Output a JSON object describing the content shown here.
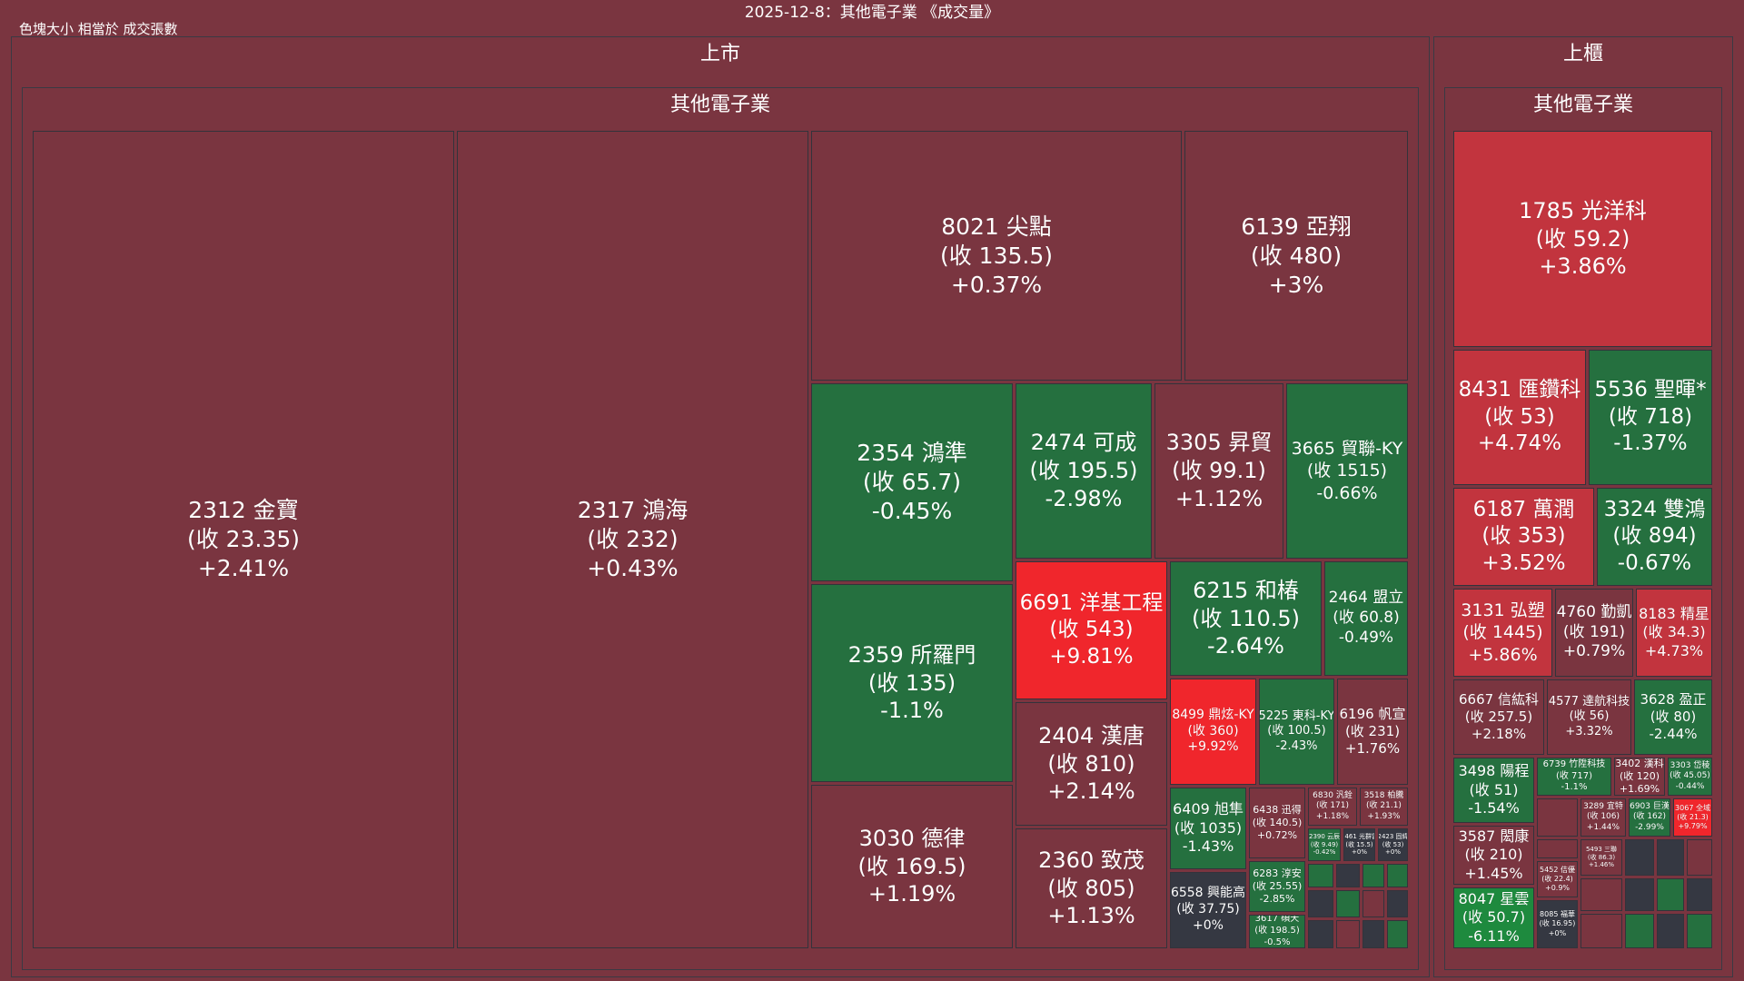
{
  "title": "2025-12-8：其他電子業 《成交量》",
  "subtitle": "色塊大小 相當於 成交張數",
  "colors": {
    "background": "#7a3540",
    "up": "#7a3540",
    "up_strong": "#c2343e",
    "limit_up": "#f0262c",
    "flat": "#353842",
    "down": "#25703f",
    "down_strong": "#1e8a3e"
  },
  "markets": [
    {
      "name": "上市",
      "industry": "其他電子業"
    },
    {
      "name": "上櫃",
      "industry": "其他電子業"
    }
  ],
  "chart_data": {
    "type": "treemap",
    "size_metric": "成交張數",
    "stocks": [
      {
        "market": "上市",
        "code": "2312",
        "name": "金寶",
        "close": "(收 23.35)",
        "change": "+2.41%",
        "change_pct": 2.41
      },
      {
        "market": "上市",
        "code": "2317",
        "name": "鴻海",
        "close": "(收 232)",
        "change": "+0.43%",
        "change_pct": 0.43
      },
      {
        "market": "上市",
        "code": "8021",
        "name": "尖點",
        "close": "(收 135.5)",
        "change": "+0.37%",
        "change_pct": 0.37
      },
      {
        "market": "上市",
        "code": "6139",
        "name": "亞翔",
        "close": "(收 480)",
        "change": "+3%",
        "change_pct": 3
      },
      {
        "market": "上市",
        "code": "2354",
        "name": "鴻準",
        "close": "(收 65.7)",
        "change": "-0.45%",
        "change_pct": -0.45
      },
      {
        "market": "上市",
        "code": "2474",
        "name": "可成",
        "close": "(收 195.5)",
        "change": "-2.98%",
        "change_pct": -2.98
      },
      {
        "market": "上市",
        "code": "3305",
        "name": "昇貿",
        "close": "(收 99.1)",
        "change": "+1.12%",
        "change_pct": 1.12
      },
      {
        "market": "上市",
        "code": "3665",
        "name": "貿聯-KY",
        "close": "(收 1515)",
        "change": "-0.66%",
        "change_pct": -0.66
      },
      {
        "market": "上市",
        "code": "2359",
        "name": "所羅門",
        "close": "(收 135)",
        "change": "-1.1%",
        "change_pct": -1.1
      },
      {
        "market": "上市",
        "code": "6691",
        "name": "洋基工程",
        "close": "(收 543)",
        "change": "+9.81%",
        "change_pct": 9.81
      },
      {
        "market": "上市",
        "code": "6215",
        "name": "和椿",
        "close": "(收 110.5)",
        "change": "-2.64%",
        "change_pct": -2.64
      },
      {
        "market": "上市",
        "code": "2464",
        "name": "盟立",
        "close": "(收 60.8)",
        "change": "-0.49%",
        "change_pct": -0.49
      },
      {
        "market": "上市",
        "code": "8499",
        "name": "鼎炫-KY",
        "close": "(收 360)",
        "change": "+9.92%",
        "change_pct": 9.92
      },
      {
        "market": "上市",
        "code": "5225",
        "name": "東科-KY",
        "close": "(收 100.5)",
        "change": "-2.43%",
        "change_pct": -2.43
      },
      {
        "market": "上市",
        "code": "6196",
        "name": "帆宣",
        "close": "(收 231)",
        "change": "+1.76%",
        "change_pct": 1.76
      },
      {
        "market": "上市",
        "code": "2404",
        "name": "漢唐",
        "close": "(收 810)",
        "change": "+2.14%",
        "change_pct": 2.14
      },
      {
        "market": "上市",
        "code": "3030",
        "name": "德律",
        "close": "(收 169.5)",
        "change": "+1.19%",
        "change_pct": 1.19
      },
      {
        "market": "上市",
        "code": "2360",
        "name": "致茂",
        "close": "(收 805)",
        "change": "+1.13%",
        "change_pct": 1.13
      },
      {
        "market": "上市",
        "code": "6409",
        "name": "旭隼",
        "close": "(收 1035)",
        "change": "-1.43%",
        "change_pct": -1.43
      },
      {
        "market": "上市",
        "code": "6438",
        "name": "迅得",
        "close": "(收 140.5)",
        "change": "+0.72%",
        "change_pct": 0.72
      },
      {
        "market": "上市",
        "code": "6830",
        "name": "汎銓",
        "close": "(收 171)",
        "change": "+1.18%",
        "change_pct": 1.18
      },
      {
        "market": "上市",
        "code": "3518",
        "name": "柏騰",
        "close": "(收 21.1)",
        "change": "+1.93%",
        "change_pct": 1.93
      },
      {
        "market": "上市",
        "code": "2390",
        "name": "云辰",
        "close": "(收 9.49)",
        "change": "-0.42%",
        "change_pct": -0.42
      },
      {
        "market": "上市",
        "code": "2461",
        "name": "光群雷",
        "close": "(收 15.5)",
        "change": "+0%",
        "change_pct": 0
      },
      {
        "market": "上市",
        "code": "2423",
        "name": "固緯",
        "close": "(收 53)",
        "change": "+0%",
        "change_pct": 0
      },
      {
        "market": "上市",
        "code": "6283",
        "name": "淳安",
        "close": "(收 25.55)",
        "change": "-2.85%",
        "change_pct": -2.85
      },
      {
        "market": "上市",
        "code": "6558",
        "name": "興能高",
        "close": "(收 37.75)",
        "change": "+0%",
        "change_pct": 0
      },
      {
        "market": "上市",
        "code": "3617",
        "name": "碩天",
        "close": "(收 198.5)",
        "change": "-0.5%",
        "change_pct": -0.5
      },
      {
        "market": "上櫃",
        "code": "1785",
        "name": "光洋科",
        "close": "(收 59.2)",
        "change": "+3.86%",
        "change_pct": 3.86
      },
      {
        "market": "上櫃",
        "code": "8431",
        "name": "匯鑽科",
        "close": "(收 53)",
        "change": "+4.74%",
        "change_pct": 4.74
      },
      {
        "market": "上櫃",
        "code": "5536",
        "name": "聖暉*",
        "close": "(收 718)",
        "change": "-1.37%",
        "change_pct": -1.37
      },
      {
        "market": "上櫃",
        "code": "6187",
        "name": "萬潤",
        "close": "(收 353)",
        "change": "+3.52%",
        "change_pct": 3.52
      },
      {
        "market": "上櫃",
        "code": "3324",
        "name": "雙鴻",
        "close": "(收 894)",
        "change": "-0.67%",
        "change_pct": -0.67
      },
      {
        "market": "上櫃",
        "code": "3131",
        "name": "弘塑",
        "close": "(收 1445)",
        "change": "+5.86%",
        "change_pct": 5.86
      },
      {
        "market": "上櫃",
        "code": "4760",
        "name": "勤凱",
        "close": "(收 191)",
        "change": "+0.79%",
        "change_pct": 0.79
      },
      {
        "market": "上櫃",
        "code": "8183",
        "name": "精星",
        "close": "(收 34.3)",
        "change": "+4.73%",
        "change_pct": 4.73
      },
      {
        "market": "上櫃",
        "code": "6667",
        "name": "信紘科",
        "close": "(收 257.5)",
        "change": "+2.18%",
        "change_pct": 2.18
      },
      {
        "market": "上櫃",
        "code": "4577",
        "name": "達航科技",
        "close": "(收 56)",
        "change": "+3.32%",
        "change_pct": 3.32
      },
      {
        "market": "上櫃",
        "code": "3628",
        "name": "盈正",
        "close": "(收 80)",
        "change": "-2.44%",
        "change_pct": -2.44
      },
      {
        "market": "上櫃",
        "code": "3498",
        "name": "陽程",
        "close": "(收 51)",
        "change": "-1.54%",
        "change_pct": -1.54
      },
      {
        "market": "上櫃",
        "code": "6739",
        "name": "竹陞科技",
        "close": "(收 717)",
        "change": "-1.1%",
        "change_pct": -1.1
      },
      {
        "market": "上櫃",
        "code": "3402",
        "name": "漢科",
        "close": "(收 120)",
        "change": "+1.69%",
        "change_pct": 1.69
      },
      {
        "market": "上櫃",
        "code": "3303",
        "name": "岱稜",
        "close": "(收 45.05)",
        "change": "-0.44%",
        "change_pct": -0.44
      },
      {
        "market": "上櫃",
        "code": "3289",
        "name": "宜特",
        "close": "(收 106)",
        "change": "+1.44%",
        "change_pct": 1.44
      },
      {
        "market": "上櫃",
        "code": "6903",
        "name": "巨漢",
        "close": "(收 162)",
        "change": "-2.99%",
        "change_pct": -2.99
      },
      {
        "market": "上櫃",
        "code": "3067",
        "name": "全域",
        "close": "(收 21.3)",
        "change": "+9.79%",
        "change_pct": 9.79
      },
      {
        "market": "上櫃",
        "code": "3587",
        "name": "閎康",
        "close": "(收 210)",
        "change": "+1.45%",
        "change_pct": 1.45
      },
      {
        "market": "上櫃",
        "code": "8047",
        "name": "星雲",
        "close": "(收 50.7)",
        "change": "-6.11%",
        "change_pct": -6.11
      },
      {
        "market": "上櫃",
        "code": "5452",
        "name": "佶優",
        "close": "(收 22.4)",
        "change": "+0.9%",
        "change_pct": 0.9
      },
      {
        "market": "上櫃",
        "code": "8085",
        "name": "福華",
        "close": "(收 16.95)",
        "change": "+0%",
        "change_pct": 0
      },
      {
        "market": "上櫃",
        "code": "5493",
        "name": "三聯",
        "close": "(收 86.3)",
        "change": "+1.46%",
        "change_pct": 1.46
      }
    ]
  }
}
